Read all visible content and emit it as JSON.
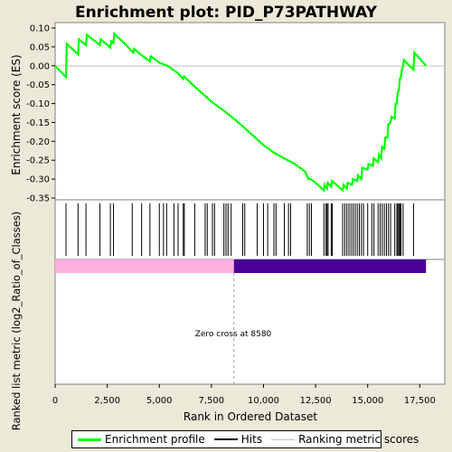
{
  "chart_data": {
    "type": "line",
    "title": "Enrichment plot: PID_P73PATHWAY",
    "xlabel": "Rank in Ordered Dataset",
    "ylabel_top": "Enrichment score (ES)",
    "ylabel_bottom": "Ranked list metric (log2_Ratio_of_Classes)",
    "xlim": [
      0,
      18700
    ],
    "ylim": [
      -0.35,
      0.1
    ],
    "x_ticks": [
      0,
      2500,
      5000,
      7500,
      10000,
      12500,
      15000,
      17500
    ],
    "x_tick_labels": [
      "0",
      "2,500",
      "5,000",
      "7,500",
      "10,000",
      "12,500",
      "15,000",
      "17,500"
    ],
    "y_ticks": [
      0.1,
      0.05,
      0.0,
      -0.05,
      -0.1,
      -0.15,
      -0.2,
      -0.25,
      -0.3,
      -0.35
    ],
    "y_tick_labels": [
      "0.10",
      "0.05",
      "0.00",
      "-0.05",
      "-0.10",
      "-0.15",
      "-0.20",
      "-0.25",
      "-0.30",
      "-0.35"
    ],
    "bottom_x_tick_labels": [
      "0",
      "2,500",
      "5,000",
      "7,500",
      "10,000",
      "12,500",
      "15,000",
      "17,500"
    ],
    "zero_cross_rank": 8580,
    "zero_cross_label": "Zero cross at 8580",
    "series": [
      {
        "name": "Enrichment profile",
        "color": "#00FF00",
        "x": [
          0,
          520,
          560,
          1100,
          1140,
          1480,
          1520,
          2150,
          2190,
          2650,
          2690,
          2800,
          2840,
          3400,
          3750,
          3790,
          4150,
          4550,
          4590,
          5000,
          5400,
          5900,
          6150,
          6190,
          6600,
          7000,
          7500,
          8000,
          8580,
          9000,
          9500,
          10000,
          10500,
          11000,
          11500,
          12000,
          12150,
          12190,
          12400,
          12500,
          12900,
          12940,
          13050,
          13090,
          13250,
          13290,
          13800,
          13840,
          14000,
          14040,
          14250,
          14290,
          14500,
          14540,
          14700,
          14740,
          15000,
          15040,
          15250,
          15290,
          15500,
          15540,
          15650,
          15690,
          15800,
          15840,
          15950,
          15990,
          16100,
          16140,
          16300,
          16340,
          16400,
          16440,
          16500,
          16540,
          16600,
          16640,
          16700,
          16740,
          17200,
          17240,
          17800
        ],
        "y": [
          0.0,
          -0.03,
          0.058,
          0.03,
          0.07,
          0.055,
          0.082,
          0.055,
          0.07,
          0.048,
          0.065,
          0.06,
          0.085,
          0.055,
          0.035,
          0.045,
          0.028,
          0.012,
          0.025,
          0.008,
          0.0,
          -0.02,
          -0.035,
          -0.028,
          -0.05,
          -0.07,
          -0.095,
          -0.115,
          -0.14,
          -0.16,
          -0.185,
          -0.21,
          -0.23,
          -0.245,
          -0.26,
          -0.28,
          -0.3,
          -0.298,
          -0.305,
          -0.31,
          -0.33,
          -0.315,
          -0.325,
          -0.31,
          -0.32,
          -0.305,
          -0.33,
          -0.315,
          -0.325,
          -0.31,
          -0.315,
          -0.3,
          -0.305,
          -0.29,
          -0.3,
          -0.27,
          -0.275,
          -0.26,
          -0.265,
          -0.245,
          -0.255,
          -0.235,
          -0.245,
          -0.215,
          -0.22,
          -0.19,
          -0.19,
          -0.155,
          -0.15,
          -0.135,
          -0.14,
          -0.1,
          -0.1,
          -0.07,
          -0.065,
          -0.035,
          -0.03,
          -0.01,
          0.0,
          0.015,
          -0.01,
          0.035,
          0.0
        ]
      }
    ],
    "hits": [
      520,
      1100,
      1480,
      2150,
      2650,
      2800,
      3700,
      4150,
      4550,
      5000,
      5200,
      5350,
      5700,
      5900,
      6150,
      6200,
      6700,
      7200,
      7300,
      7550,
      7650,
      8100,
      8200,
      8300,
      8450,
      9000,
      9100,
      9700,
      10000,
      10200,
      10500,
      10600,
      11000,
      11200,
      11300,
      12100,
      12200,
      12300,
      12900,
      13000,
      13050,
      13100,
      13250,
      13300,
      13800,
      13900,
      14000,
      14100,
      14200,
      14300,
      14400,
      14500,
      14600,
      14700,
      14800,
      15000,
      15200,
      15300,
      15500,
      15600,
      15700,
      15800,
      15900,
      16000,
      16100,
      16300,
      16400,
      16450,
      16500,
      16550,
      16600,
      16700,
      17200
    ],
    "ranked_metric": {
      "positive_end": 8580,
      "negative_start": 8580,
      "x_end": 17800,
      "positive_color": "#FFB0E0",
      "negative_color": "#4B0096"
    },
    "legend": [
      {
        "label": "Enrichment profile",
        "color": "#00FF00"
      },
      {
        "label": "Hits",
        "color": "#000000"
      },
      {
        "label": "Ranking metric scores",
        "color": "#C0C0C0"
      }
    ]
  }
}
